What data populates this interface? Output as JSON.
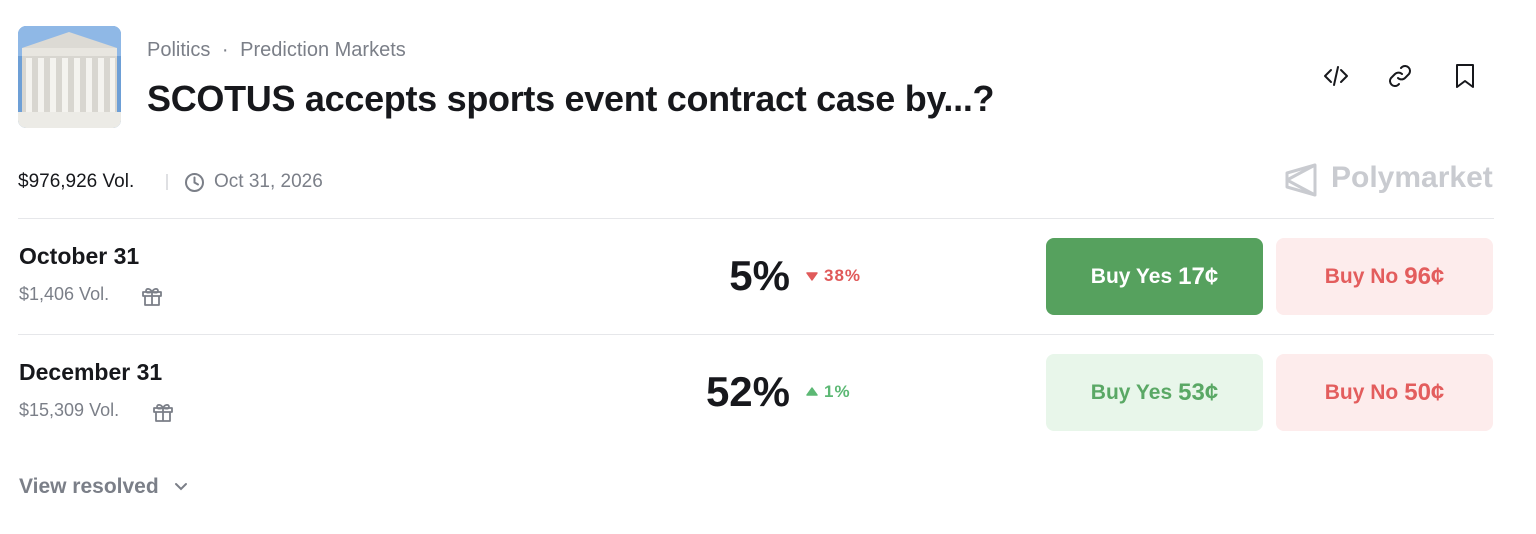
{
  "header": {
    "category": "Politics",
    "separator": "·",
    "subcategory": "Prediction Markets",
    "title": "SCOTUS accepts sports event contract case by...?"
  },
  "meta": {
    "volume": "$976,926 Vol.",
    "end_date": "Oct 31, 2026",
    "brand": "Polymarket"
  },
  "markets": [
    {
      "label": "October 31",
      "volume": "$1,406 Vol.",
      "probability": "5%",
      "change": "38%",
      "change_direction": "down",
      "buy_yes": "Buy Yes",
      "yes_price": "17¢",
      "buy_no": "Buy No",
      "no_price": "96¢",
      "yes_highlight": true
    },
    {
      "label": "December 31",
      "volume": "$15,309 Vol.",
      "probability": "52%",
      "change": "1%",
      "change_direction": "up",
      "buy_yes": "Buy Yes",
      "yes_price": "53¢",
      "buy_no": "Buy No",
      "no_price": "50¢",
      "yes_highlight": false
    }
  ],
  "footer": {
    "view_resolved": "View resolved"
  }
}
